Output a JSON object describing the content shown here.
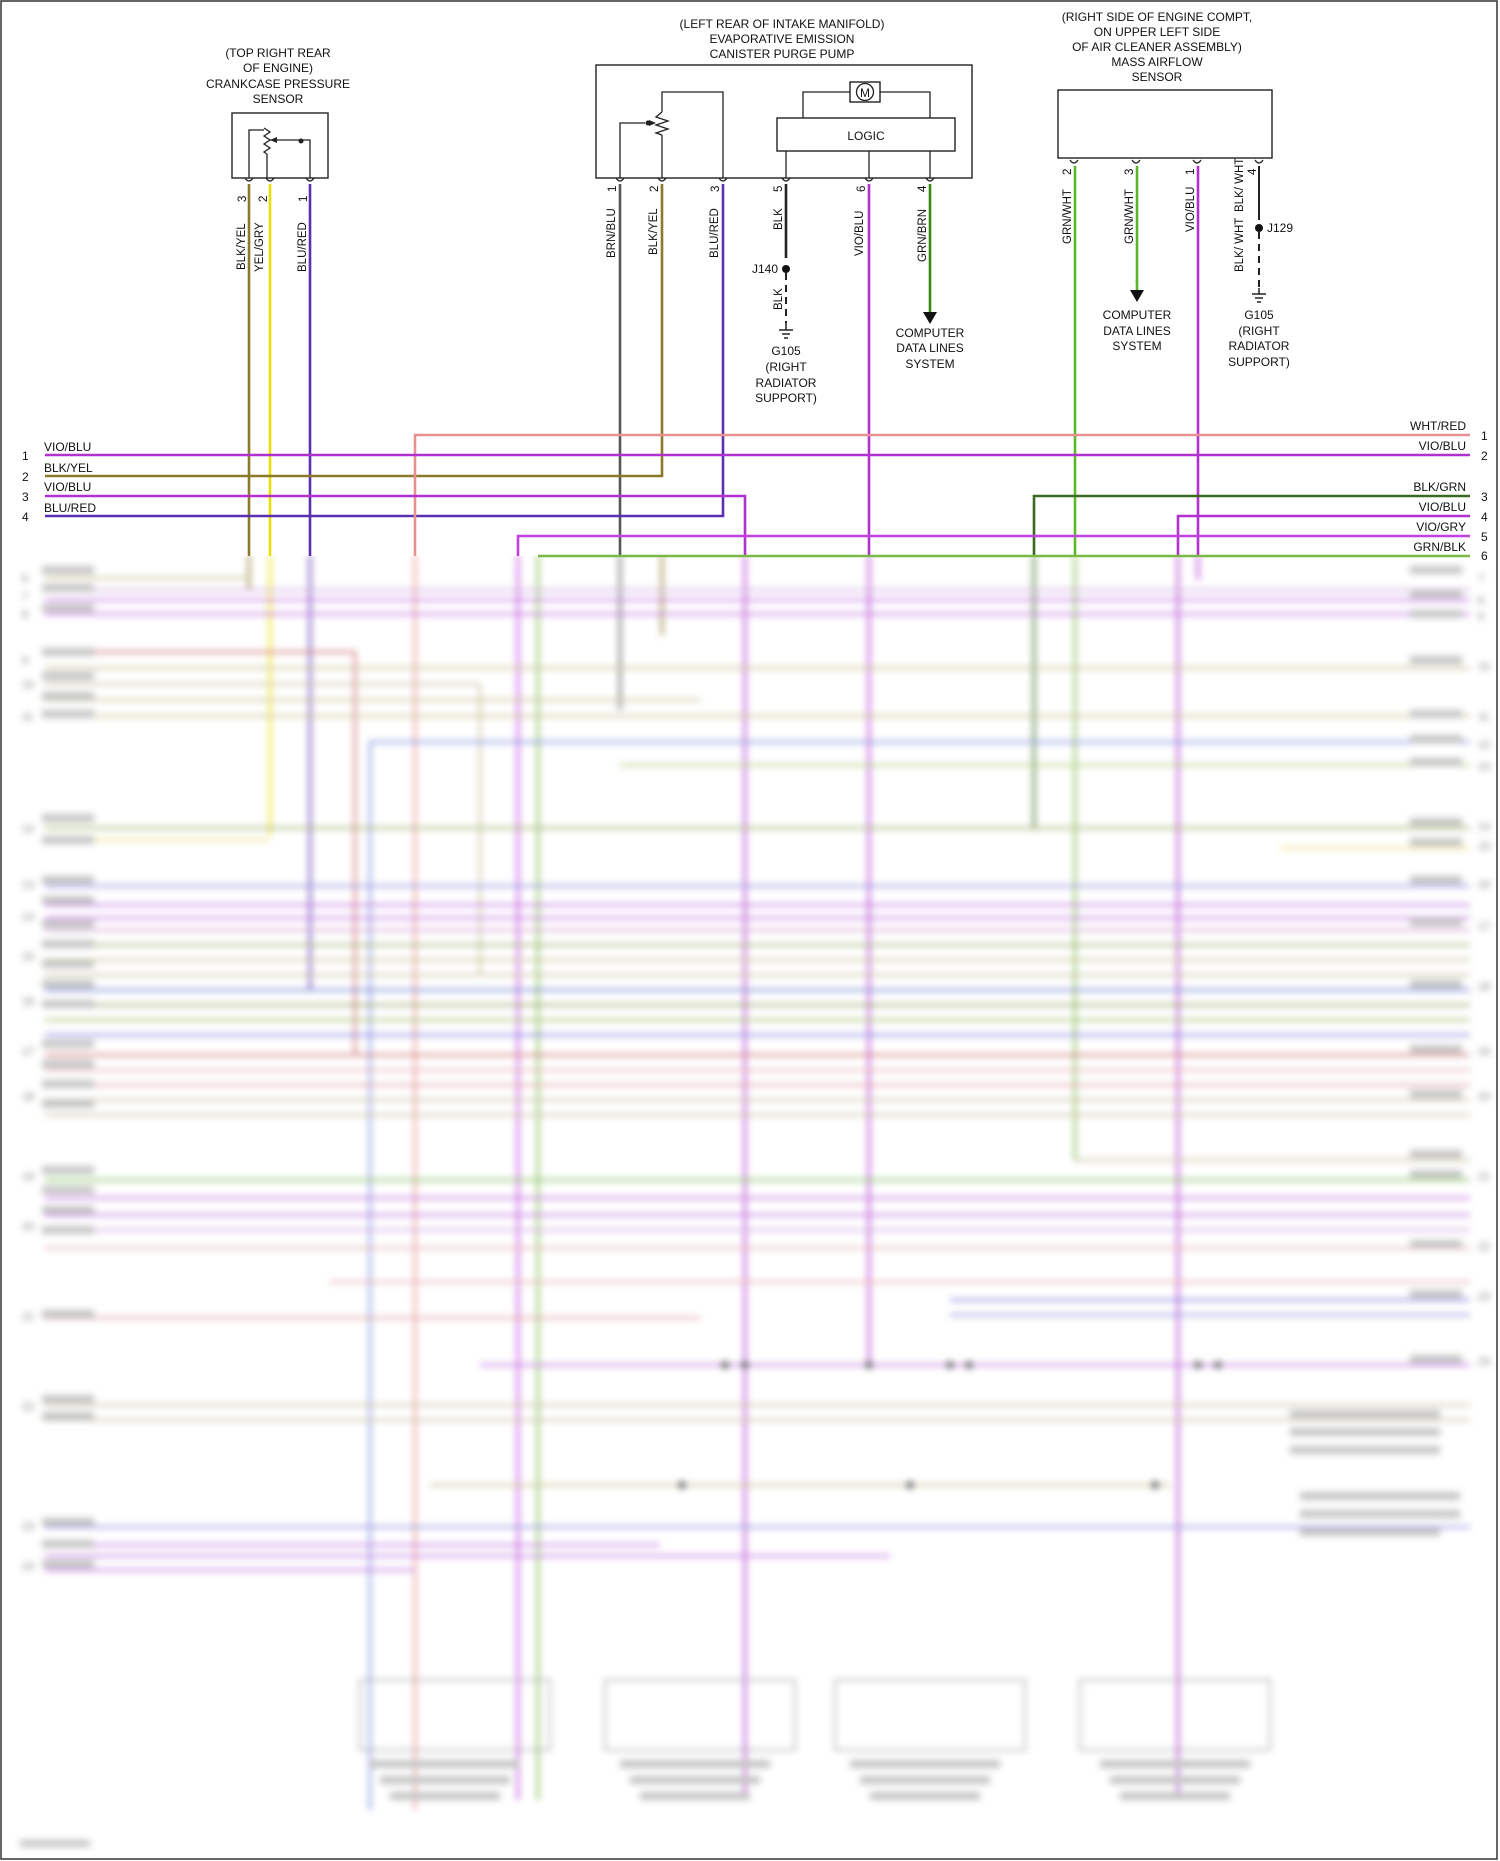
{
  "crankcase_sensor": {
    "title_lines": [
      "(TOP RIGHT REAR",
      "OF ENGINE)",
      "CRANKCASE PRESSURE",
      "SENSOR"
    ],
    "pins": [
      {
        "num": "3",
        "wire": "BLK/YEL",
        "color": "#8a7a2a"
      },
      {
        "num": "2",
        "wire": "YEL/GRY",
        "color": "#e8e000"
      },
      {
        "num": "1",
        "wire": "BLU/RED",
        "color": "#5a2fb0"
      }
    ]
  },
  "purge_pump": {
    "title_lines": [
      "(LEFT REAR OF INTAKE MANIFOLD)",
      "EVAPORATIVE EMISSION",
      "CANISTER PURGE PUMP"
    ],
    "motor_label": "M",
    "logic_label": "LOGIC",
    "pins": [
      {
        "num": "1",
        "wire": "BRN/BLU",
        "color": "#555555"
      },
      {
        "num": "2",
        "wire": "BLK/YEL",
        "color": "#8a7a2a"
      },
      {
        "num": "3",
        "wire": "BLU/RED",
        "color": "#5a2fb0"
      },
      {
        "num": "5",
        "wire": "BLK",
        "color": "#222222"
      },
      {
        "num": "6",
        "wire": "VIO/BLU",
        "color": "#b030d0"
      },
      {
        "num": "4",
        "wire": "GRN/BRN",
        "color": "#3a8a10"
      }
    ],
    "splice": "J140",
    "ground_wire": "BLK",
    "ground_lines": [
      "G105",
      "(RIGHT",
      "RADIATOR",
      "SUPPORT)"
    ],
    "data_lines": [
      "COMPUTER",
      "DATA LINES",
      "SYSTEM"
    ]
  },
  "maf_sensor": {
    "title_lines": [
      "(RIGHT SIDE OF ENGINE COMPT,",
      "ON UPPER LEFT SIDE",
      "OF AIR CLEANER ASSEMBLY)",
      "MASS AIRFLOW",
      "SENSOR"
    ],
    "pins": [
      {
        "num": "2",
        "wire": "GRN/WHT",
        "color": "#5ab828"
      },
      {
        "num": "3",
        "wire": "GRN/WHT",
        "color": "#5ab828"
      },
      {
        "num": "1",
        "wire": "VIO/BLU",
        "color": "#b030d0"
      },
      {
        "num": "4",
        "wire": "BLK/ WHT",
        "color": "#222222"
      }
    ],
    "splice": "J129",
    "splice_wire": "BLK/ WHT",
    "ground_lines": [
      "G105",
      "(RIGHT",
      "RADIATOR",
      "SUPPORT)"
    ],
    "data_lines": [
      "COMPUTER",
      "DATA LINES",
      "SYSTEM"
    ]
  },
  "left_connector": [
    {
      "num": "1",
      "wire": "VIO/BLU",
      "color": "#b030d0"
    },
    {
      "num": "2",
      "wire": "BLK/YEL",
      "color": "#8a7a2a"
    },
    {
      "num": "3",
      "wire": "VIO/BLU",
      "color": "#b030d0"
    },
    {
      "num": "4",
      "wire": "BLU/RED",
      "color": "#5a2fb0"
    }
  ],
  "right_connector": [
    {
      "num": "1",
      "wire": "WHT/RED",
      "color": "#e89090"
    },
    {
      "num": "2",
      "wire": "VIO/BLU",
      "color": "#b030d0"
    },
    {
      "num": "3",
      "wire": "BLK/GRN",
      "color": "#3a6a20"
    },
    {
      "num": "4",
      "wire": "VIO/BLU",
      "color": "#b030d0"
    },
    {
      "num": "5",
      "wire": "VIO/GRY",
      "color": "#c040e0"
    },
    {
      "num": "6",
      "wire": "GRN/BLK",
      "color": "#7ab848"
    }
  ]
}
